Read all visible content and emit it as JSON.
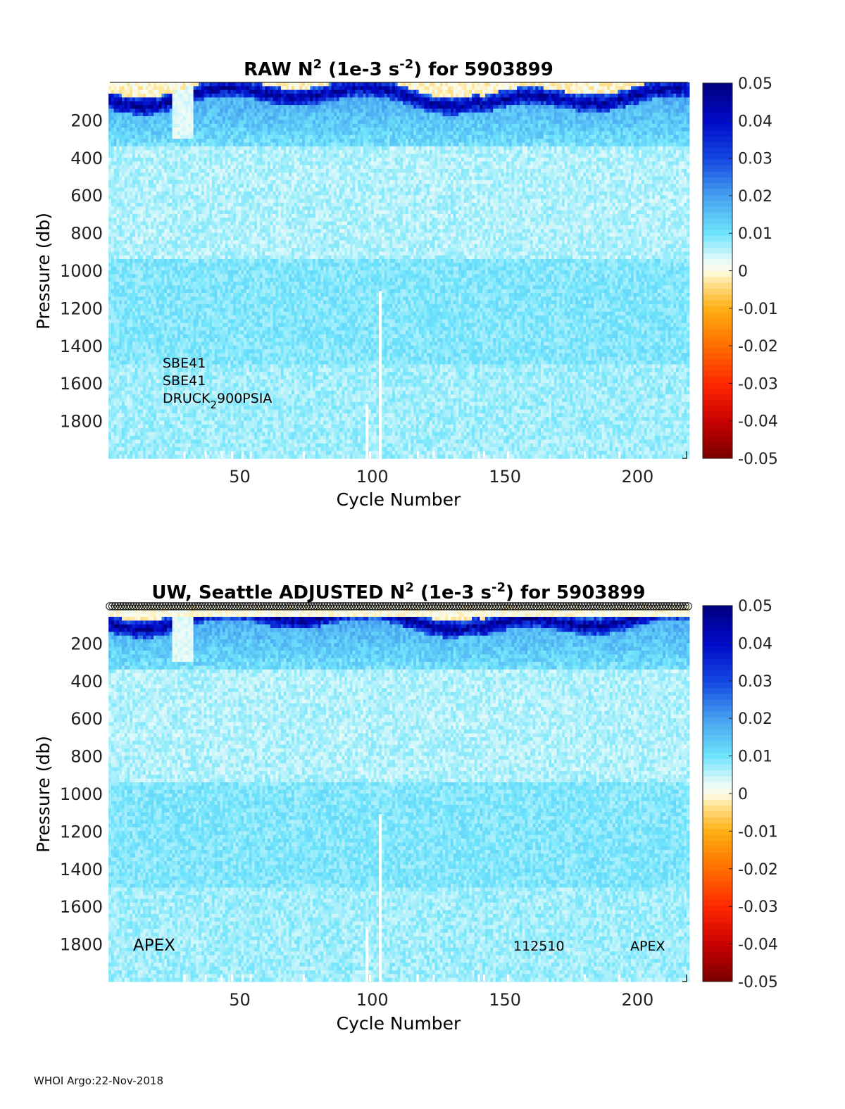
{
  "chart_data": [
    {
      "type": "heatmap",
      "title_parts": {
        "pre": "RAW N",
        "sup1": "2",
        "mid": " (1e-3 s",
        "sup2": "-2",
        "post": ") for 5903899"
      },
      "xlabel": "Cycle Number",
      "ylabel": "Pressure (db)",
      "xlim": [
        1,
        219
      ],
      "ylim": [
        2000,
        0
      ],
      "xticks": [
        "50",
        "100",
        "150",
        "200"
      ],
      "yticks": [
        "200",
        "400",
        "600",
        "800",
        "1000",
        "1200",
        "1400",
        "1600",
        "1800"
      ],
      "colorbar": {
        "min": -0.05,
        "max": 0.05,
        "ticks": [
          "0.05",
          "0.04",
          "0.03",
          "0.02",
          "0.01",
          "0",
          "-0.01",
          "-0.02",
          "-0.03",
          "-0.04",
          "-0.05"
        ]
      },
      "annotations": {
        "line1": "SBE41",
        "line2": "SBE41",
        "line3_pre": "DRUCK",
        "line3_sub": "2",
        "line3_post": "900PSIA"
      },
      "data_description": {
        "thermocline_n2_max": 0.05,
        "deep_n2_typical": 0.008,
        "missing_profile_cycles": [
          98,
          103
        ],
        "surface_value_range": [
          -0.005,
          0.003
        ]
      }
    },
    {
      "type": "heatmap",
      "title_parts": {
        "pre": "UW, Seattle  ADJUSTED N",
        "sup1": "2",
        "mid": " (1e-3 s",
        "sup2": "-2",
        "post": ") for 5903899"
      },
      "xlabel": "Cycle Number",
      "ylabel": "Pressure (db)",
      "xlim": [
        1,
        219
      ],
      "ylim": [
        2000,
        0
      ],
      "xticks": [
        "50",
        "100",
        "150",
        "200"
      ],
      "yticks": [
        "200",
        "400",
        "600",
        "800",
        "1000",
        "1200",
        "1400",
        "1600",
        "1800"
      ],
      "colorbar": {
        "min": -0.05,
        "max": 0.05,
        "ticks": [
          "0.05",
          "0.04",
          "0.03",
          "0.02",
          "0.01",
          "0",
          "-0.01",
          "-0.02",
          "-0.03",
          "-0.04",
          "-0.05"
        ]
      },
      "annotations": {
        "left": "APEX",
        "mid": "112510",
        "right": "APEX"
      },
      "qc_markers": "open circles along top for each cycle"
    }
  ],
  "footer": {
    "text": "WHOI Argo:22-Nov-2018"
  }
}
